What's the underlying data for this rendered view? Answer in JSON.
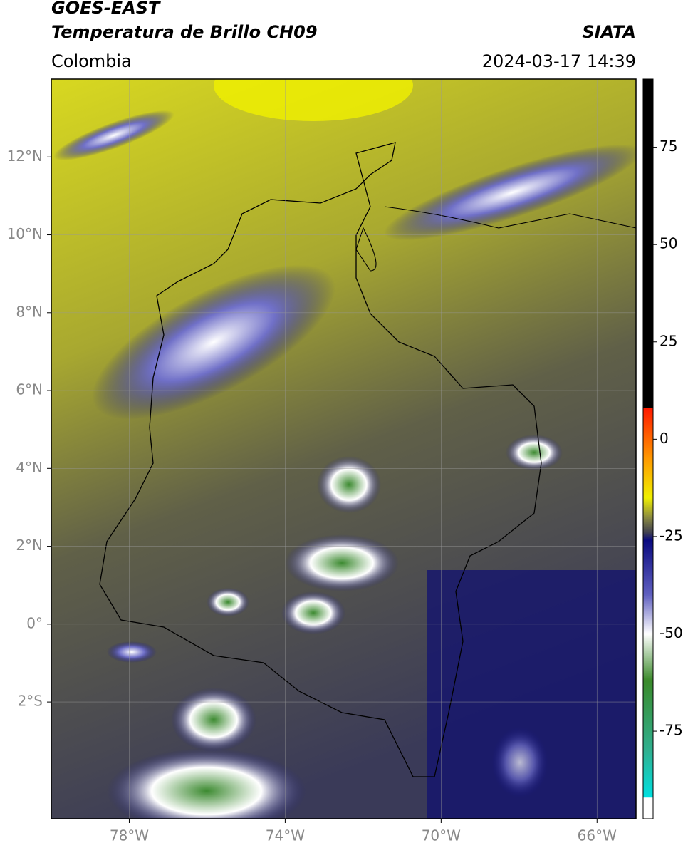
{
  "chart_data": {
    "type": "map",
    "title": "GOES-EAST",
    "subtitle": "Temperatura de Brillo CH09",
    "source": "SIATA",
    "region": "Colombia",
    "datetime": "2024-03-17 14:39",
    "xlim": [
      -80,
      -65
    ],
    "ylim": [
      -5,
      14
    ],
    "xticks": [
      {
        "value": -78,
        "label": "78°W"
      },
      {
        "value": -74,
        "label": "74°W"
      },
      {
        "value": -70,
        "label": "70°W"
      },
      {
        "value": -66,
        "label": "66°W"
      }
    ],
    "yticks": [
      {
        "value": 12,
        "label": "12°N"
      },
      {
        "value": 10,
        "label": "10°N"
      },
      {
        "value": 8,
        "label": "8°N"
      },
      {
        "value": 6,
        "label": "6°N"
      },
      {
        "value": 4,
        "label": "4°N"
      },
      {
        "value": 2,
        "label": "2°N"
      },
      {
        "value": 0,
        "label": "0°"
      },
      {
        "value": -2,
        "label": "2°S"
      }
    ],
    "grid": true,
    "clim": [
      -97.5,
      92.5
    ],
    "cticks": [
      75,
      50,
      25,
      0,
      -25,
      -50,
      -75
    ],
    "colormap": [
      {
        "value": 92.5,
        "color": "#000000"
      },
      {
        "value": 8,
        "color": "#000000"
      },
      {
        "value": 7.9,
        "color": "#ff1a00"
      },
      {
        "value": -5,
        "color": "#ff9900"
      },
      {
        "value": -15,
        "color": "#f0f000"
      },
      {
        "value": -20,
        "color": "#8c8c40"
      },
      {
        "value": -24,
        "color": "#404050"
      },
      {
        "value": -26,
        "color": "#0a0a80"
      },
      {
        "value": -40,
        "color": "#6060c0"
      },
      {
        "value": -50,
        "color": "#ffffff"
      },
      {
        "value": -62,
        "color": "#3a8a2a"
      },
      {
        "value": -80,
        "color": "#30b090"
      },
      {
        "value": -92,
        "color": "#00e0e0"
      },
      {
        "value": -92.1,
        "color": "#ffffff"
      },
      {
        "value": -97.5,
        "color": "#ffffff"
      }
    ]
  }
}
